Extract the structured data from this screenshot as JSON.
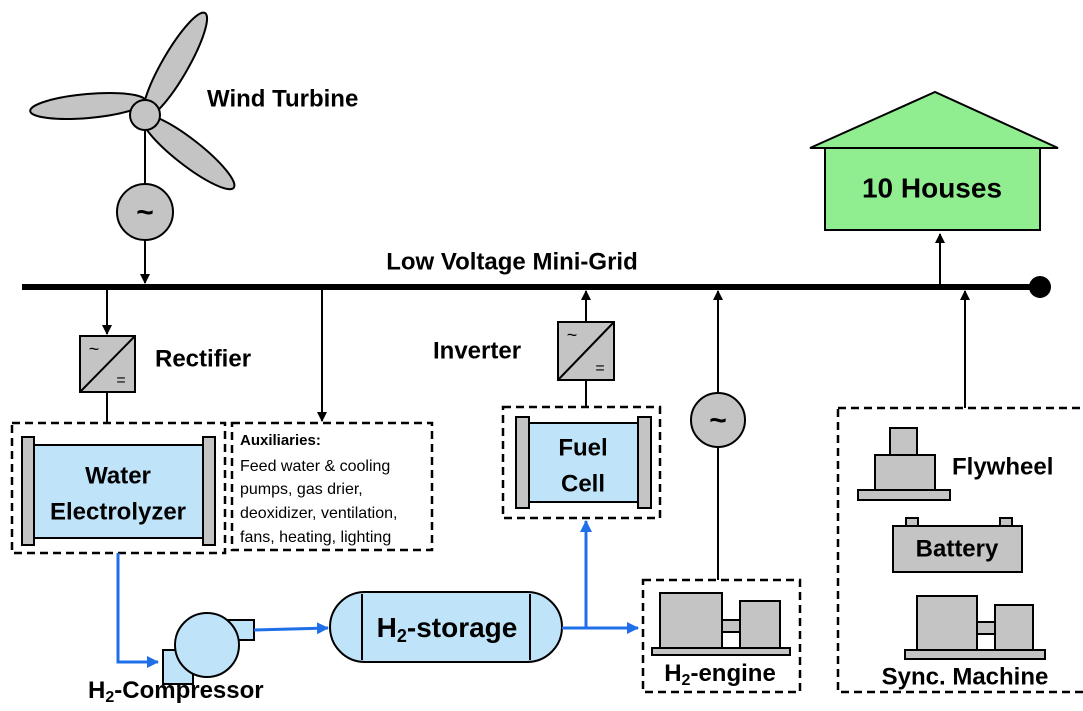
{
  "title": "Low Voltage Mini-Grid",
  "wind_turbine": {
    "label": "Wind Turbine",
    "symbol": "~"
  },
  "houses": {
    "label": "10 Houses"
  },
  "rectifier": {
    "label": "Rectifier",
    "ac": "~",
    "dc": "="
  },
  "inverter": {
    "label": "Inverter",
    "ac": "~",
    "dc": "="
  },
  "electrolyzer": {
    "lines": [
      "Water",
      "Electrolyzer"
    ]
  },
  "auxiliaries": {
    "heading": "Auxiliaries:",
    "lines": [
      "Feed water & cooling",
      "pumps, gas drier,",
      "deoxidizer, ventilation,",
      "fans, heating, lighting"
    ]
  },
  "fuel_cell": {
    "lines": [
      "Fuel",
      "Cell"
    ]
  },
  "storage": {
    "prefix": "H",
    "sub": "2",
    "rest": "-storage"
  },
  "compressor": {
    "prefix": "H",
    "sub": "2",
    "rest": "-Compressor"
  },
  "engine": {
    "prefix": "H",
    "sub": "2",
    "rest": "-engine",
    "symbol": "~"
  },
  "flywheel": {
    "label": "Flywheel"
  },
  "battery": {
    "label": "Battery"
  },
  "sync_machine": {
    "label": "Sync. Machine"
  }
}
